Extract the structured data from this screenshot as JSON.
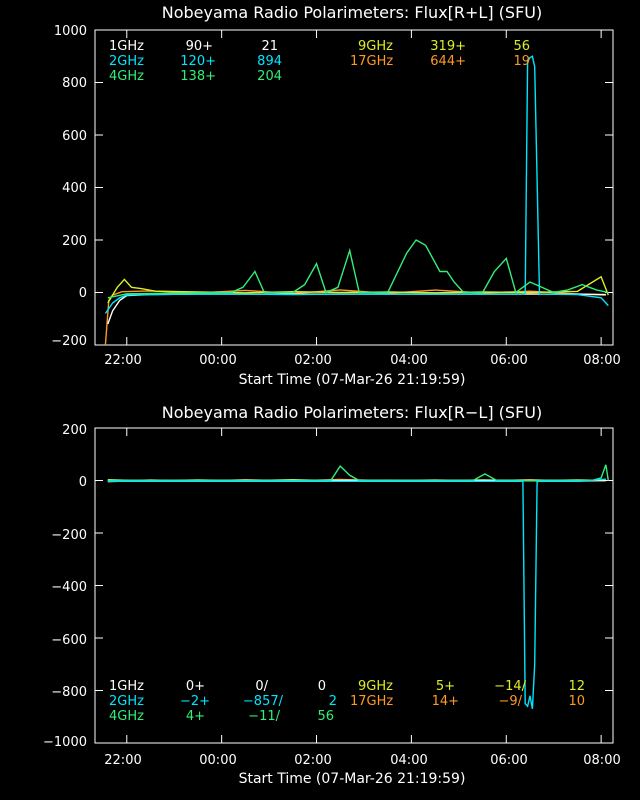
{
  "colors": {
    "c1GHz": "#ffffff",
    "c2GHz": "#00e5ff",
    "c4GHz": "#33ee77",
    "c9GHz": "#ddee22",
    "c17GHz": "#ff9922",
    "axis": "#ffffff",
    "background": "#000000"
  },
  "chart_data": [
    {
      "type": "line",
      "title": "Nobeyama Radio Polarimeters: Flux[R+L] (SFU)",
      "xlabel": "Start Time (07-Mar-26 21:19:59)",
      "ylabel": "",
      "xlim_hours": [
        21.33,
        32.25
      ],
      "ylim": [
        -200,
        1000
      ],
      "yticks": [
        "1000",
        "800",
        "600",
        "400",
        "200",
        "0",
        "−200"
      ],
      "ytick_values": [
        1000,
        800,
        600,
        400,
        200,
        0,
        -200
      ],
      "xticks": [
        "22:00",
        "00:00",
        "02:00",
        "04:00",
        "06:00",
        "08:00"
      ],
      "xtick_values": [
        22,
        24,
        26,
        28,
        30,
        32
      ],
      "legend_rows": [
        {
          "color": "c1GHz",
          "cells": [
            "1GHz",
            "90+",
            "21"
          ]
        },
        {
          "color": "c2GHz",
          "cells": [
            "2GHz",
            "120+",
            "894"
          ]
        },
        {
          "color": "c4GHz",
          "cells": [
            "4GHz",
            "138+",
            "204"
          ]
        },
        {
          "color": "c9GHz",
          "cells": [
            "9GHz",
            "319+",
            "56"
          ]
        },
        {
          "color": "c17GHz",
          "cells": [
            "17GHz",
            "644+",
            "19"
          ]
        }
      ],
      "series": [
        {
          "name": "17GHz",
          "color": "c17GHz",
          "x": [
            21.55,
            21.62,
            21.7,
            21.9,
            22.5,
            23.5,
            24.5,
            25.5,
            26.5,
            27.5,
            28.5,
            29.5,
            30.5,
            31.5,
            32.1
          ],
          "y": [
            -200,
            -30,
            -10,
            3,
            6,
            -2,
            8,
            -4,
            10,
            -3,
            9,
            -2,
            5,
            -6,
            -10
          ]
        },
        {
          "name": "9GHz",
          "color": "c9GHz",
          "x": [
            21.6,
            21.8,
            21.95,
            22.1,
            22.3,
            22.6,
            23.5,
            24.5,
            25.5,
            26.5,
            27.5,
            28.5,
            29.5,
            30.5,
            31.5,
            32.0,
            32.15
          ],
          "y": [
            -40,
            20,
            50,
            20,
            15,
            5,
            2,
            -1,
            3,
            0,
            2,
            -1,
            2,
            0,
            4,
            60,
            -10
          ]
        },
        {
          "name": "1GHz",
          "color": "c1GHz",
          "x": [
            21.6,
            21.7,
            21.85,
            22.0,
            22.5,
            23.5,
            24.5,
            25.5,
            26.5,
            27.5,
            28.5,
            29.5,
            30.5,
            31.5,
            32.1
          ],
          "y": [
            -120,
            -70,
            -30,
            -12,
            -8,
            -6,
            -6,
            -6,
            -6,
            -6,
            -6,
            -6,
            -6,
            -6,
            -8
          ]
        },
        {
          "name": "2GHz",
          "color": "c2GHz",
          "x": [
            21.55,
            21.7,
            21.85,
            22.0,
            22.5,
            23.5,
            24.5,
            25.5,
            26.5,
            27.5,
            28.5,
            29.5,
            30.3,
            30.4,
            30.45,
            30.5,
            30.55,
            30.6,
            30.7,
            31.5,
            32.0,
            32.15
          ],
          "y": [
            -80,
            -40,
            -20,
            -10,
            -8,
            -6,
            -6,
            -8,
            -6,
            -6,
            -6,
            -6,
            -6,
            -4,
            880,
            895,
            900,
            860,
            -6,
            -8,
            -20,
            -50
          ]
        },
        {
          "name": "4GHz",
          "color": "c4GHz",
          "x": [
            21.6,
            22.0,
            24.2,
            24.45,
            24.7,
            24.9,
            25.5,
            25.75,
            26.0,
            26.2,
            26.45,
            26.7,
            26.9,
            27.5,
            27.9,
            28.1,
            28.3,
            28.6,
            28.75,
            28.9,
            29.1,
            29.5,
            29.75,
            30.0,
            30.2,
            30.5,
            31.0,
            31.3,
            31.6,
            31.9,
            32.15
          ],
          "y": [
            -20,
            -5,
            0,
            20,
            80,
            0,
            0,
            30,
            110,
            0,
            20,
            160,
            0,
            0,
            150,
            200,
            180,
            80,
            80,
            40,
            0,
            0,
            80,
            130,
            0,
            40,
            0,
            10,
            30,
            10,
            0
          ]
        }
      ]
    },
    {
      "type": "line",
      "title": "Nobeyama Radio Polarimeters: Flux[R−L] (SFU)",
      "xlabel": "Start Time (07-Mar-26 21:19:59)",
      "ylabel": "",
      "xlim_hours": [
        21.33,
        32.25
      ],
      "ylim": [
        -1000,
        200
      ],
      "yticks": [
        "200",
        "0",
        "−200",
        "−400",
        "−600",
        "−800",
        "−1000"
      ],
      "ytick_values": [
        200,
        0,
        -200,
        -400,
        -600,
        -800,
        -1000
      ],
      "xticks": [
        "22:00",
        "00:00",
        "02:00",
        "04:00",
        "06:00",
        "08:00"
      ],
      "xtick_values": [
        22,
        24,
        26,
        28,
        30,
        32
      ],
      "legend_rows": [
        {
          "color": "c1GHz",
          "cells": [
            "1GHz",
            "0+",
            "0/",
            "0"
          ]
        },
        {
          "color": "c2GHz",
          "cells": [
            "2GHz",
            "−2+",
            "−857/",
            "2"
          ]
        },
        {
          "color": "c4GHz",
          "cells": [
            "4GHz",
            "4+",
            "−11/",
            "56"
          ]
        },
        {
          "color": "c9GHz",
          "cells": [
            "9GHz",
            "5+",
            "−14/",
            "12"
          ]
        },
        {
          "color": "c17GHz",
          "cells": [
            "17GHz",
            "14+",
            "−9/",
            "10"
          ]
        }
      ],
      "series": [
        {
          "name": "17GHz",
          "color": "c17GHz",
          "x": [
            21.6,
            22.5,
            23.5,
            24.5,
            25.5,
            26.5,
            27.5,
            28.5,
            29.5,
            30.5,
            31.5,
            32.1
          ],
          "y": [
            -5,
            2,
            -3,
            3,
            -2,
            4,
            -1,
            2,
            -2,
            3,
            -3,
            0
          ]
        },
        {
          "name": "9GHz",
          "color": "c9GHz",
          "x": [
            21.6,
            22.5,
            23.5,
            24.5,
            25.5,
            26.5,
            27.5,
            28.5,
            29.5,
            30.5,
            31.5,
            32.1
          ],
          "y": [
            3,
            -2,
            2,
            -1,
            3,
            -2,
            1,
            -2,
            2,
            -1,
            2,
            0
          ]
        },
        {
          "name": "1GHz",
          "color": "c1GHz",
          "x": [
            21.6,
            32.1
          ],
          "y": [
            0,
            0
          ]
        },
        {
          "name": "4GHz",
          "color": "c4GHz",
          "x": [
            21.6,
            26.3,
            26.5,
            26.7,
            26.9,
            29.3,
            29.55,
            29.8,
            30.2,
            31.8,
            32.0,
            32.1,
            32.15
          ],
          "y": [
            0,
            0,
            55,
            20,
            0,
            0,
            25,
            0,
            0,
            0,
            10,
            60,
            0
          ]
        },
        {
          "name": "2GHz",
          "color": "c2GHz",
          "x": [
            21.6,
            30.35,
            30.4,
            30.45,
            30.5,
            30.55,
            30.6,
            30.65,
            30.7,
            31.5,
            32.1
          ],
          "y": [
            -3,
            -3,
            -850,
            -860,
            -820,
            -870,
            -700,
            -5,
            -3,
            -3,
            5
          ]
        }
      ]
    }
  ]
}
